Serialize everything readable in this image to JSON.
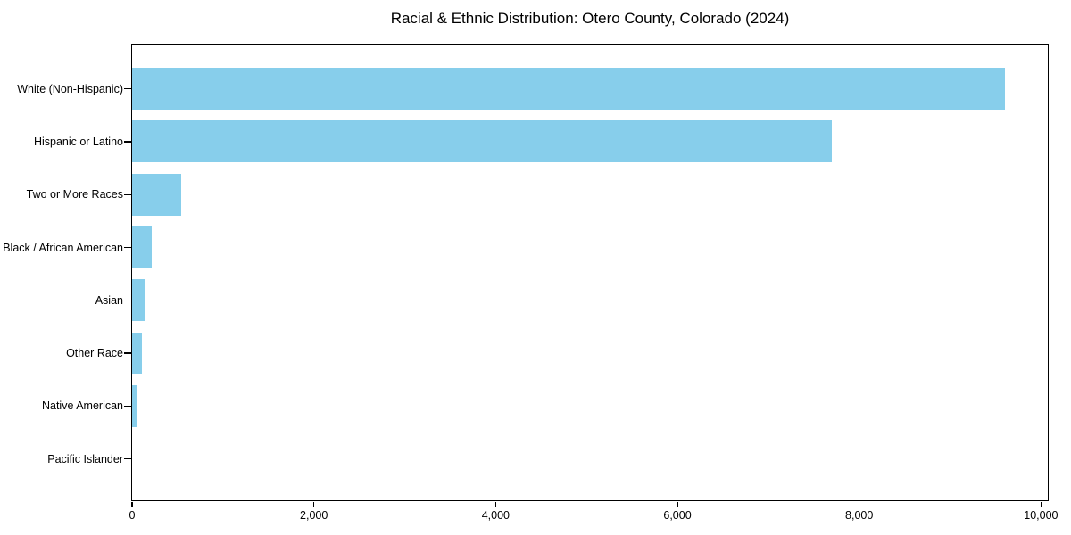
{
  "figure": {
    "background": "#ffffff"
  },
  "chart_data": {
    "type": "bar",
    "orientation": "horizontal",
    "title": "Racial & Ethnic Distribution: Otero County, Colorado (2024)",
    "categories": [
      "White (Non-Hispanic)",
      "Hispanic or Latino",
      "Two or More Races",
      "Black / African American",
      "Asian",
      "Other Race",
      "Native American",
      "Pacific Islander"
    ],
    "values": [
      9600,
      7700,
      540,
      215,
      135,
      110,
      60,
      0
    ],
    "xlabel": "",
    "ylabel": "",
    "xlim": [
      0,
      10075
    ],
    "xticks": [
      0,
      2000,
      4000,
      6000,
      8000,
      10000
    ],
    "xtick_labels": [
      "0",
      "2,000",
      "4,000",
      "6,000",
      "8,000",
      "10,000"
    ],
    "bar_color": "#87CEEB",
    "axis_color": "#000000",
    "text_color": "#000000",
    "grid": false,
    "legend_position": "none"
  }
}
